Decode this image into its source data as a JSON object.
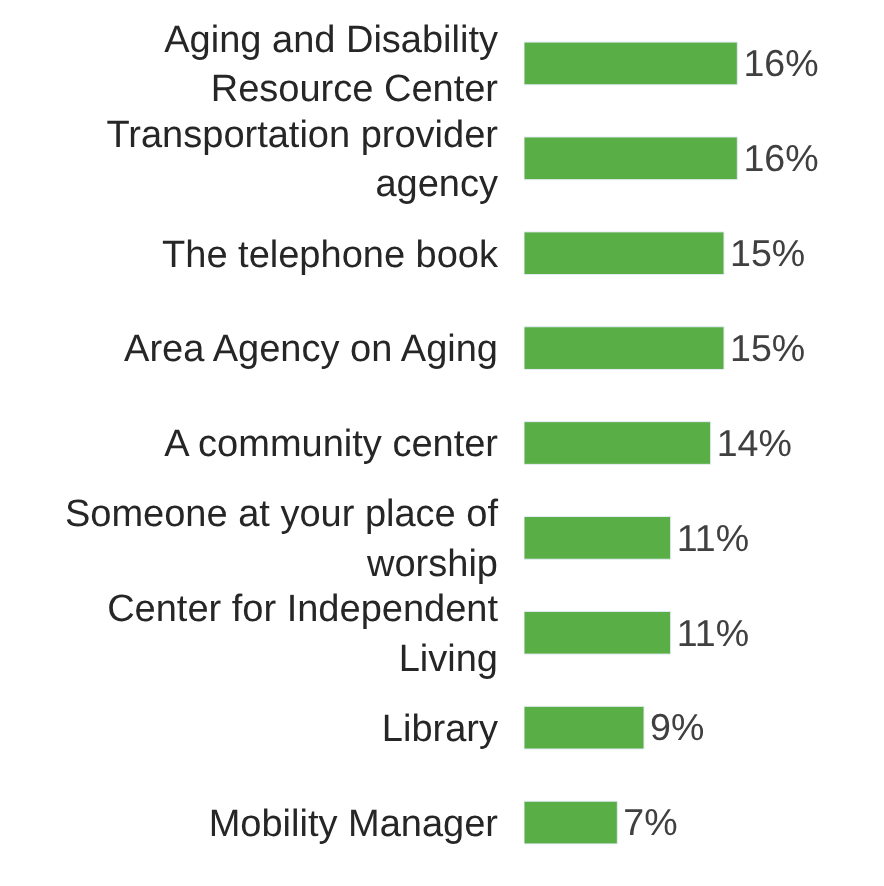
{
  "chart_data": {
    "type": "bar",
    "orientation": "horizontal",
    "categories": [
      "Aging and Disability Resource Center",
      "Transportation provider agency",
      "The telephone book",
      "Area Agency on Aging",
      "A community center",
      "Someone at your place of worship",
      "Center for Independent Living",
      "Library",
      "Mobility Manager"
    ],
    "values": [
      16,
      16,
      15,
      15,
      14,
      11,
      11,
      9,
      7
    ],
    "value_labels": [
      "16%",
      "16%",
      "15%",
      "15%",
      "14%",
      "11%",
      "11%",
      "9%",
      "7%"
    ],
    "color": "#5aae46"
  }
}
